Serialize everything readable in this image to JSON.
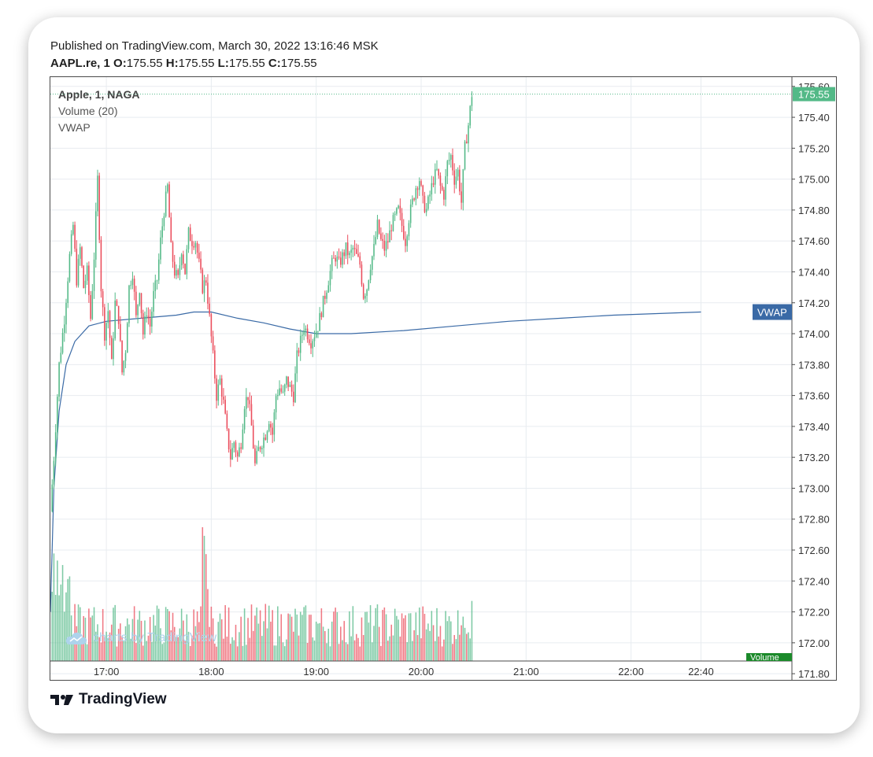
{
  "header": {
    "published": "Published on TradingView.com, March 30, 2022 13:16:46 MSK",
    "symbol": "AAPL.re, 1",
    "o_label": "O:",
    "o_value": "175.55",
    "h_label": "H:",
    "h_value": "175.55",
    "l_label": "L:",
    "l_value": "175.55",
    "c_label": "C:",
    "c_value": "175.55"
  },
  "legend": {
    "symbol": "Apple, 1, NAGA",
    "volume": "Volume (20)",
    "vwap": "VWAP"
  },
  "watermark": "charts by TradingView",
  "footer_logo": "TradingView",
  "colors": {
    "up": "#53b987",
    "down": "#eb4d5c",
    "vwap": "#3a6aa6",
    "last_price_bg": "#53b987",
    "vwap_tag_bg": "#3a6aa6",
    "volume_tag_bg": "#1b8a2a",
    "grid": "#e8ecf0"
  },
  "chart_data": {
    "type": "candlestick",
    "y_axis": {
      "ticks": [
        "171.80",
        "172.00",
        "172.20",
        "172.40",
        "172.60",
        "172.80",
        "173.00",
        "173.20",
        "173.40",
        "173.60",
        "173.80",
        "174.00",
        "174.20",
        "174.40",
        "174.60",
        "174.80",
        "175.00",
        "175.20",
        "175.40",
        "175.60"
      ],
      "range": [
        171.76,
        175.66
      ]
    },
    "x_axis": {
      "ticks": [
        "17:00",
        "18:00",
        "19:00",
        "20:00",
        "21:00",
        "22:00",
        "22:40"
      ],
      "tick_minutes": [
        60,
        120,
        180,
        240,
        300,
        360,
        400
      ],
      "range_minutes": [
        28,
        452
      ]
    },
    "price_path": [
      [
        28,
        172.85
      ],
      [
        30,
        173.2
      ],
      [
        33,
        173.8
      ],
      [
        36,
        174.1
      ],
      [
        39,
        174.5
      ],
      [
        41,
        174.7
      ],
      [
        43,
        174.35
      ],
      [
        45,
        174.55
      ],
      [
        47,
        174.3
      ],
      [
        49,
        174.4
      ],
      [
        51,
        174.1
      ],
      [
        53,
        174.5
      ],
      [
        55,
        175.0
      ],
      [
        57,
        174.3
      ],
      [
        59,
        174.0
      ],
      [
        61,
        174.15
      ],
      [
        63,
        173.8
      ],
      [
        65,
        174.2
      ],
      [
        67,
        174.1
      ],
      [
        69,
        173.75
      ],
      [
        71,
        173.9
      ],
      [
        73,
        174.3
      ],
      [
        75,
        174.4
      ],
      [
        77,
        174.1
      ],
      [
        79,
        174.3
      ],
      [
        81,
        174.0
      ],
      [
        83,
        174.15
      ],
      [
        85,
        174.05
      ],
      [
        87,
        174.25
      ],
      [
        89,
        174.35
      ],
      [
        91,
        174.6
      ],
      [
        93,
        174.8
      ],
      [
        95,
        174.95
      ],
      [
        97,
        174.55
      ],
      [
        99,
        174.4
      ],
      [
        101,
        174.35
      ],
      [
        103,
        174.55
      ],
      [
        105,
        174.4
      ],
      [
        107,
        174.65
      ],
      [
        109,
        174.6
      ],
      [
        111,
        174.6
      ],
      [
        113,
        174.45
      ],
      [
        115,
        174.3
      ],
      [
        117,
        174.35
      ],
      [
        119,
        174.1
      ],
      [
        121,
        173.85
      ],
      [
        123,
        173.6
      ],
      [
        125,
        173.7
      ],
      [
        127,
        173.55
      ],
      [
        129,
        173.35
      ],
      [
        131,
        173.2
      ],
      [
        133,
        173.3
      ],
      [
        135,
        173.2
      ],
      [
        137,
        173.3
      ],
      [
        139,
        173.55
      ],
      [
        141,
        173.6
      ],
      [
        143,
        173.4
      ],
      [
        145,
        173.15
      ],
      [
        147,
        173.25
      ],
      [
        149,
        173.3
      ],
      [
        151,
        173.35
      ],
      [
        153,
        173.45
      ],
      [
        155,
        173.35
      ],
      [
        157,
        173.6
      ],
      [
        159,
        173.65
      ],
      [
        161,
        173.6
      ],
      [
        163,
        173.7
      ],
      [
        165,
        173.65
      ],
      [
        167,
        173.6
      ],
      [
        169,
        173.85
      ],
      [
        171,
        173.95
      ],
      [
        173,
        174.05
      ],
      [
        175,
        174.0
      ],
      [
        177,
        173.95
      ],
      [
        179,
        174.0
      ],
      [
        181,
        174.05
      ],
      [
        183,
        174.15
      ],
      [
        185,
        174.25
      ],
      [
        187,
        174.35
      ],
      [
        189,
        174.45
      ],
      [
        191,
        174.5
      ],
      [
        193,
        174.45
      ],
      [
        195,
        174.5
      ],
      [
        197,
        174.55
      ],
      [
        199,
        174.5
      ],
      [
        201,
        174.55
      ],
      [
        203,
        174.5
      ],
      [
        205,
        174.45
      ],
      [
        207,
        174.25
      ],
      [
        209,
        174.3
      ],
      [
        211,
        174.45
      ],
      [
        213,
        174.55
      ],
      [
        215,
        174.7
      ],
      [
        217,
        174.6
      ],
      [
        219,
        174.55
      ],
      [
        221,
        174.6
      ],
      [
        223,
        174.7
      ],
      [
        225,
        174.75
      ],
      [
        227,
        174.8
      ],
      [
        229,
        174.7
      ],
      [
        231,
        174.6
      ],
      [
        233,
        174.75
      ],
      [
        235,
        174.85
      ],
      [
        237,
        174.95
      ],
      [
        239,
        175.0
      ],
      [
        241,
        174.85
      ],
      [
        243,
        174.8
      ],
      [
        245,
        174.9
      ],
      [
        247,
        175.0
      ],
      [
        249,
        175.05
      ],
      [
        251,
        174.95
      ],
      [
        253,
        174.9
      ],
      [
        255,
        175.1
      ],
      [
        257,
        175.15
      ],
      [
        259,
        175.0
      ],
      [
        261,
        175.05
      ],
      [
        263,
        174.85
      ],
      [
        265,
        175.2
      ],
      [
        267,
        175.35
      ],
      [
        269,
        175.55
      ]
    ],
    "vwap_path": [
      [
        28,
        172.2
      ],
      [
        30,
        173.0
      ],
      [
        33,
        173.5
      ],
      [
        37,
        173.8
      ],
      [
        42,
        173.95
      ],
      [
        50,
        174.05
      ],
      [
        60,
        174.08
      ],
      [
        80,
        174.1
      ],
      [
        100,
        174.12
      ],
      [
        110,
        174.14
      ],
      [
        120,
        174.14
      ],
      [
        135,
        174.1
      ],
      [
        150,
        174.07
      ],
      [
        165,
        174.03
      ],
      [
        180,
        174.0
      ],
      [
        200,
        174.0
      ],
      [
        230,
        174.02
      ],
      [
        260,
        174.05
      ],
      [
        290,
        174.08
      ],
      [
        320,
        174.1
      ],
      [
        350,
        174.12
      ],
      [
        400,
        174.14
      ]
    ],
    "last_price": "175.55",
    "last_price_value": 175.55,
    "vwap_label": "VWAP",
    "vwap_label_value": 174.14,
    "volume_label": "Volume",
    "series": [
      {
        "name": "Apple, 1, NAGA"
      },
      {
        "name": "Volume (20)"
      },
      {
        "name": "VWAP"
      }
    ]
  }
}
